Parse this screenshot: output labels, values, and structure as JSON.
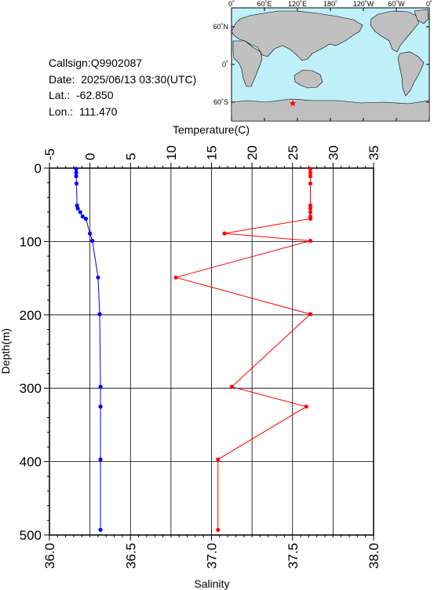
{
  "station": {
    "callsign": "Callsign:Q9902087",
    "date": "Date:  2025/06/13 03:30(UTC)",
    "lat": "Lat.:  -62.850",
    "lon": "Lon.:  111.470"
  },
  "map": {
    "lon_labels": [
      "0˚",
      "60˚E",
      "120˚E",
      "180˚",
      "120˚W",
      "60˚W",
      "0˚"
    ],
    "lat_labels": [
      "60˚N",
      "0˚",
      "60˚S"
    ],
    "ocean_color": "#bff0fa",
    "land_color": "#c0c0c0",
    "marker_color": "#ff0000",
    "marker": {
      "lat": -62.85,
      "lon": 111.47
    }
  },
  "chart_data": {
    "type": "line",
    "ylabel": "Depth(m)",
    "top_xlabel": "Temperature(C)",
    "bottom_xlabel": "Salinity",
    "ylim": [
      0,
      500
    ],
    "yticks": [
      "0",
      "100",
      "200",
      "300",
      "400",
      "500"
    ],
    "temperature_axis": {
      "range": [
        -5,
        35
      ],
      "ticks": [
        "-5",
        "0",
        "5",
        "10",
        "15",
        "20",
        "25",
        "30",
        "35"
      ]
    },
    "salinity_axis": {
      "range": [
        36.0,
        38.0
      ],
      "ticks": [
        "36.0",
        "36.5",
        "37.0",
        "37.5",
        "38.0"
      ]
    },
    "grid": true,
    "series": [
      {
        "name": "Temperature",
        "axis": "temperature",
        "color": "#ff0000",
        "points": [
          [
            27.2,
            1
          ],
          [
            27.2,
            6
          ],
          [
            27.2,
            11
          ],
          [
            27.2,
            21
          ],
          [
            27.2,
            51
          ],
          [
            27.2,
            55
          ],
          [
            27.2,
            60
          ],
          [
            27.2,
            66
          ],
          [
            27.2,
            69
          ],
          [
            16.6,
            89
          ],
          [
            27.2,
            99
          ],
          [
            10.6,
            149
          ],
          [
            27.2,
            199
          ],
          [
            17.5,
            298
          ],
          [
            26.7,
            325
          ],
          [
            15.8,
            397
          ],
          [
            15.8,
            493
          ]
        ]
      },
      {
        "name": "Salinity",
        "axis": "salinity",
        "color": "#0000ff",
        "points": [
          [
            36.165,
            1
          ],
          [
            36.165,
            6
          ],
          [
            36.165,
            11
          ],
          [
            36.167,
            21
          ],
          [
            36.17,
            51
          ],
          [
            36.175,
            55
          ],
          [
            36.19,
            60
          ],
          [
            36.205,
            66
          ],
          [
            36.225,
            69
          ],
          [
            36.25,
            89
          ],
          [
            36.265,
            99
          ],
          [
            36.3,
            149
          ],
          [
            36.31,
            199
          ],
          [
            36.315,
            298
          ],
          [
            36.315,
            325
          ],
          [
            36.315,
            397
          ],
          [
            36.315,
            493
          ]
        ]
      }
    ]
  }
}
